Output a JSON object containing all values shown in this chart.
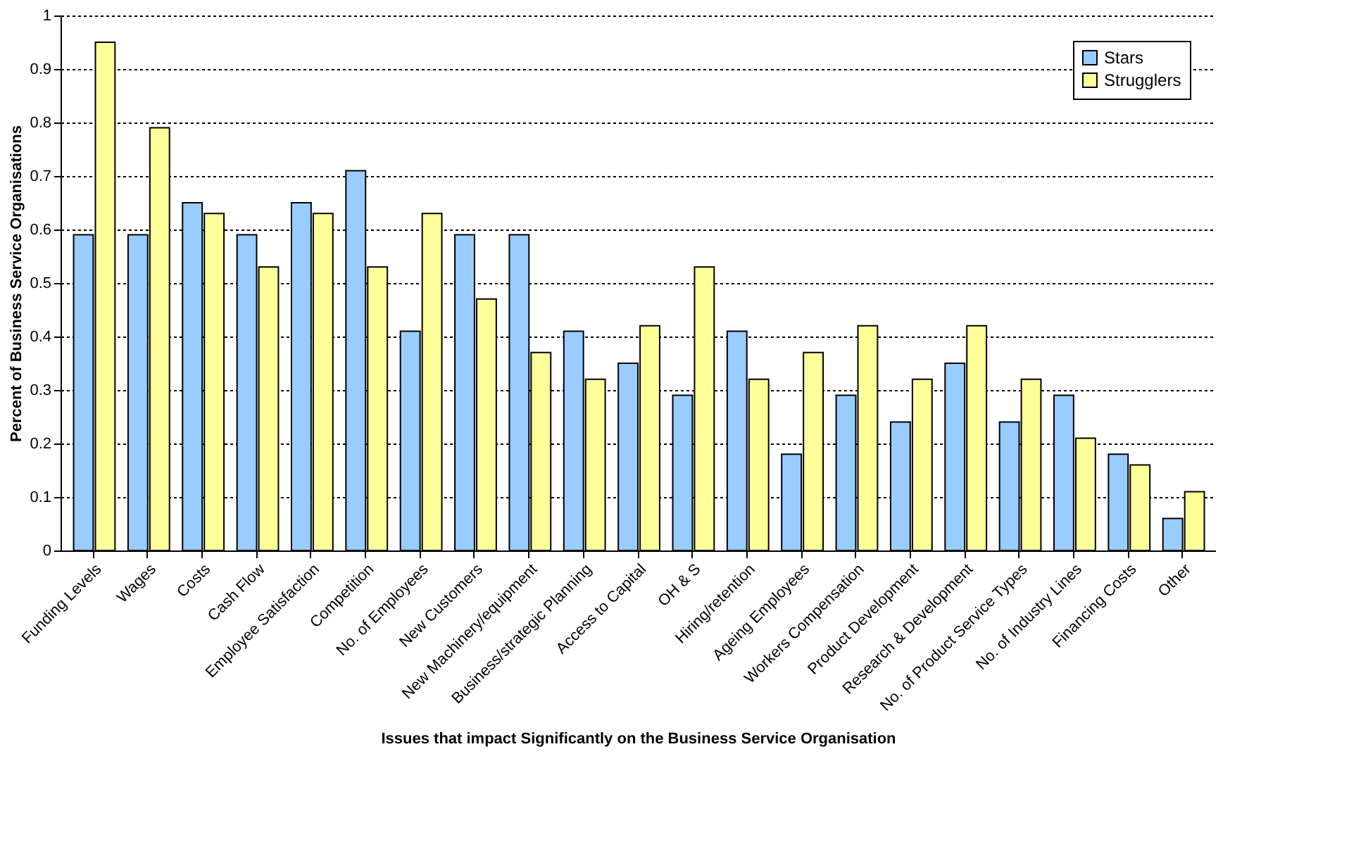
{
  "chart_data": {
    "type": "bar",
    "xlabel": "Issues that impact Significantly on the Business Service Organisation",
    "ylabel": "Percent of Business Service Organisations",
    "categories": [
      "Funding Levels",
      "Wages",
      "Costs",
      "Cash Flow",
      "Employee Satisfaction",
      "Competition",
      "No. of Employees",
      "New Customers",
      "New Machinery/equipment",
      "Business/strategic Planning",
      "Access to Capital",
      "OH & S",
      "Hiring/retention",
      "Ageing Employees",
      "Workers Compensation",
      "Product Development",
      "Research & Development",
      "No. of Product Service Types",
      "No. of Industry Lines",
      "Financing Costs",
      "Other"
    ],
    "series": [
      {
        "name": "Stars",
        "color": "#99ccff",
        "values": [
          0.59,
          0.59,
          0.65,
          0.59,
          0.65,
          0.71,
          0.41,
          0.59,
          0.59,
          0.41,
          0.35,
          0.29,
          0.41,
          0.18,
          0.29,
          0.24,
          0.35,
          0.24,
          0.29,
          0.18,
          0.06
        ]
      },
      {
        "name": "Strugglers",
        "color": "#ffff99",
        "values": [
          0.95,
          0.79,
          0.63,
          0.53,
          0.63,
          0.53,
          0.63,
          0.47,
          0.37,
          0.32,
          0.42,
          0.53,
          0.32,
          0.37,
          0.42,
          0.32,
          0.42,
          0.32,
          0.21,
          0.16,
          0.11
        ]
      }
    ],
    "ylim": [
      0,
      1
    ],
    "yticks": [
      0,
      0.1,
      0.2,
      0.3,
      0.4,
      0.5,
      0.6,
      0.7,
      0.8,
      0.9,
      1
    ],
    "grid": "y",
    "legend": "top right"
  }
}
